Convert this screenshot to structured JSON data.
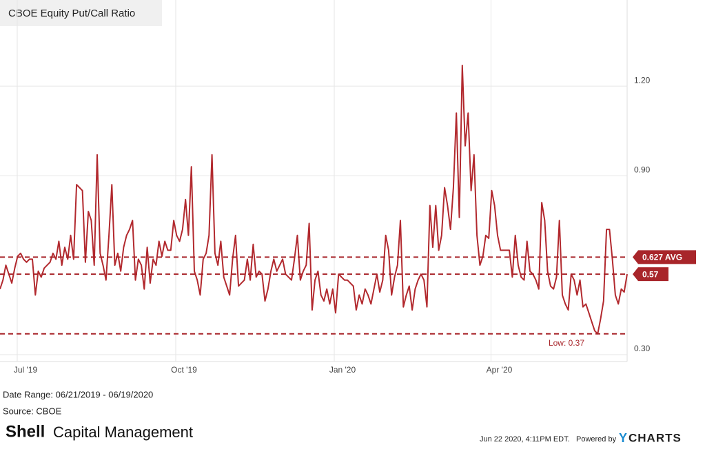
{
  "chart_data": {
    "type": "line",
    "title": "CBOE Equity Put/Call Ratio",
    "series": [
      {
        "color": "#b2292e",
        "values": [
          0.52,
          0.55,
          0.6,
          0.57,
          0.54,
          0.59,
          0.63,
          0.64,
          0.62,
          0.61,
          0.62,
          0.62,
          0.5,
          0.58,
          0.56,
          0.59,
          0.6,
          0.61,
          0.64,
          0.62,
          0.68,
          0.6,
          0.66,
          0.62,
          0.7,
          0.62,
          0.87,
          0.86,
          0.85,
          0.61,
          0.78,
          0.75,
          0.6,
          0.97,
          0.64,
          0.6,
          0.55,
          0.7,
          0.87,
          0.6,
          0.64,
          0.58,
          0.66,
          0.7,
          0.72,
          0.75,
          0.55,
          0.62,
          0.6,
          0.52,
          0.66,
          0.54,
          0.62,
          0.6,
          0.68,
          0.63,
          0.68,
          0.65,
          0.65,
          0.75,
          0.7,
          0.68,
          0.72,
          0.82,
          0.7,
          0.93,
          0.58,
          0.55,
          0.5,
          0.62,
          0.64,
          0.7,
          0.97,
          0.64,
          0.6,
          0.68,
          0.56,
          0.53,
          0.5,
          0.62,
          0.7,
          0.53,
          0.54,
          0.55,
          0.62,
          0.55,
          0.67,
          0.56,
          0.58,
          0.57,
          0.48,
          0.52,
          0.58,
          0.62,
          0.58,
          0.6,
          0.62,
          0.57,
          0.56,
          0.55,
          0.62,
          0.7,
          0.55,
          0.58,
          0.6,
          0.74,
          0.45,
          0.55,
          0.58,
          0.5,
          0.48,
          0.52,
          0.47,
          0.52,
          0.44,
          0.57,
          0.56,
          0.55,
          0.55,
          0.54,
          0.53,
          0.45,
          0.5,
          0.47,
          0.52,
          0.5,
          0.47,
          0.52,
          0.57,
          0.51,
          0.55,
          0.7,
          0.65,
          0.5,
          0.56,
          0.6,
          0.75,
          0.46,
          0.5,
          0.53,
          0.45,
          0.52,
          0.55,
          0.57,
          0.55,
          0.46,
          0.8,
          0.66,
          0.8,
          0.65,
          0.7,
          0.86,
          0.8,
          0.72,
          0.86,
          1.11,
          0.76,
          1.27,
          1.0,
          1.11,
          0.85,
          0.97,
          0.7,
          0.6,
          0.63,
          0.7,
          0.69,
          0.85,
          0.8,
          0.7,
          0.65,
          0.65,
          0.65,
          0.65,
          0.56,
          0.7,
          0.6,
          0.56,
          0.55,
          0.68,
          0.58,
          0.57,
          0.55,
          0.52,
          0.81,
          0.75,
          0.58,
          0.53,
          0.52,
          0.56,
          0.75,
          0.5,
          0.47,
          0.45,
          0.57,
          0.55,
          0.5,
          0.55,
          0.46,
          0.47,
          0.44,
          0.41,
          0.38,
          0.37,
          0.42,
          0.48,
          0.72,
          0.72,
          0.62,
          0.5,
          0.47,
          0.52,
          0.51,
          0.57
        ]
      }
    ],
    "xlim": [
      "2019-06-21",
      "2020-06-19"
    ],
    "xticks": [
      {
        "value": "2019-07-01",
        "label": "Jul '19"
      },
      {
        "value": "2019-10-01",
        "label": "Oct '19"
      },
      {
        "value": "2020-01-01",
        "label": "Jan '20"
      },
      {
        "value": "2020-04-01",
        "label": "Apr '20"
      }
    ],
    "ylim": [
      0.277,
      1.489
    ],
    "yticks": [
      {
        "value": 0.3,
        "label": "0.30"
      },
      {
        "value": 0.9,
        "label": "0.90"
      },
      {
        "value": 1.2,
        "label": "1.20"
      }
    ],
    "grid": true,
    "reference_lines": [
      {
        "value": 0.627,
        "label": "0.627 AVG",
        "style": "tag"
      },
      {
        "value": 0.57,
        "label": "0.57",
        "style": "tag"
      },
      {
        "value": 0.37,
        "label": "Low: 0.37",
        "style": "inline"
      }
    ]
  },
  "footer": {
    "date_range": "Date Range: 06/21/2019 - 06/19/2020",
    "source": "Source: CBOE",
    "brand_bold": "Shell",
    "brand_rest": "Capital Management",
    "timestamp": "Jun 22 2020, 4:11PM EDT.",
    "powered_by": "Powered by",
    "provider_mark": "Y",
    "provider_name": "CHARTS"
  }
}
